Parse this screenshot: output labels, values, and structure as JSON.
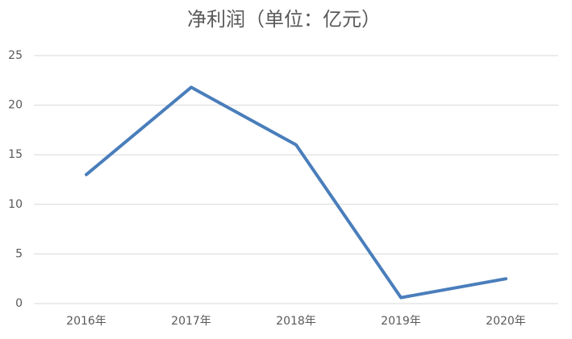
{
  "chart_data": {
    "type": "line",
    "title": "净利润（单位：亿元）",
    "categories": [
      "2016年",
      "2017年",
      "2018年",
      "2019年",
      "2020年"
    ],
    "values": [
      13,
      21.8,
      16,
      0.6,
      2.5
    ],
    "color": "#4a7ebb",
    "ylim": [
      0,
      25
    ],
    "yticks": [
      0,
      5,
      10,
      15,
      20,
      25
    ],
    "grid": true
  }
}
